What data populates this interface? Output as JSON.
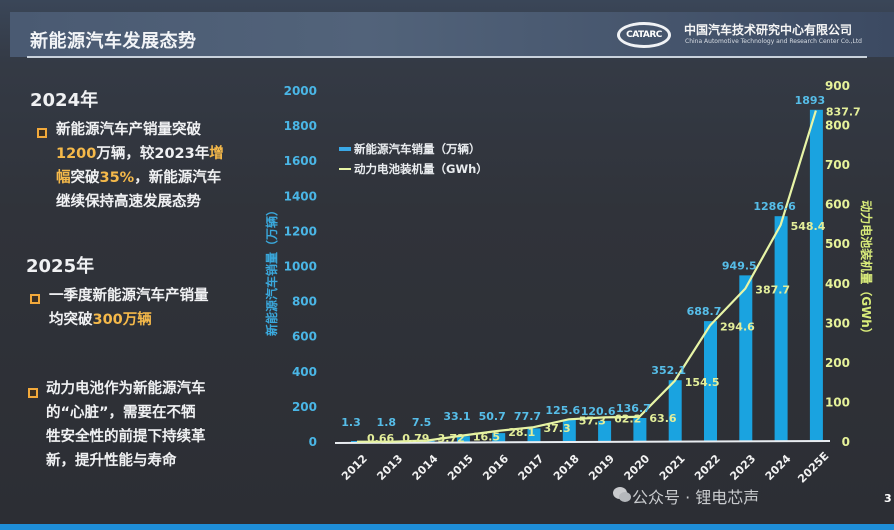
{
  "header": {
    "title": "新能源汽车发展态势",
    "logo_mark": "CATARC",
    "org_cn": "中国汽车技术研究中心有限公司",
    "org_en": "China Automotive Technology and Research Center Co.,Ltd"
  },
  "left_panel": {
    "section_2024": {
      "year": "2024年",
      "lines": [
        [
          "新能源汽车产销量突破"
        ],
        [
          "1200",
          "万辆，较2023年",
          "增"
        ],
        [
          "幅",
          "突破",
          "35%",
          "，新能源汽车"
        ],
        [
          "继续保持高速发展态势"
        ]
      ]
    },
    "section_2025": {
      "year": "2025年",
      "lines": [
        [
          "一季度新能源汽车产销量"
        ],
        [
          "均突破",
          "300万辆"
        ]
      ]
    },
    "battery_note": {
      "lines": [
        "动力电池作为新能源汽车",
        "的“心脏”，需要在不牺",
        "牲安全性的前提下持续革",
        "新，提升性能与寿命"
      ]
    }
  },
  "chart_data": {
    "type": "bar+line",
    "title": "",
    "categories": [
      "2012",
      "2013",
      "2014",
      "2015",
      "2016",
      "2017",
      "2018",
      "2019",
      "2020",
      "2021",
      "2022",
      "2023",
      "2024",
      "2025E"
    ],
    "series": [
      {
        "name": "新能源汽车销量（万辆）",
        "type": "bar",
        "axis": "left",
        "color": "#1aa3e0",
        "values": [
          1.3,
          1.8,
          7.5,
          33.1,
          50.7,
          77.7,
          125.6,
          120.6,
          136.7,
          352.1,
          688.7,
          949.5,
          1286.6,
          1893
        ],
        "labels": [
          "1.3",
          "1.8",
          "7.5",
          "33.1",
          "50.7",
          "77.7",
          "125.6",
          "120.6",
          "136.7",
          "352.1",
          "688.7",
          "949.5",
          "1286.6",
          "1893"
        ]
      },
      {
        "name": "动力电池装机量（GWh）",
        "type": "line",
        "axis": "right",
        "color": "#e8f5a6",
        "values": [
          0.66,
          0.79,
          3.72,
          16.5,
          28.1,
          37.3,
          57.3,
          62.2,
          63.6,
          154.5,
          294.6,
          387.7,
          548.4,
          837.7
        ],
        "labels": [
          "0.66",
          "0.79",
          "3.72",
          "16.5",
          "28.1",
          "37.3",
          "57.3",
          "62.2",
          "63.6",
          "154.5",
          "294.6",
          "387.7",
          "548.4",
          "837.7"
        ]
      }
    ],
    "y_left": {
      "label": "新能源汽车销量（万辆）",
      "ylim": [
        0,
        2000
      ],
      "ticks": [
        "0",
        "200",
        "400",
        "600",
        "800",
        "1000",
        "1200",
        "1400",
        "1600",
        "1800",
        "2000"
      ]
    },
    "y_right": {
      "label": "动力电池装机量（GWh）",
      "ylim": [
        0,
        900
      ],
      "ticks": [
        "0",
        "100",
        "200",
        "300",
        "400",
        "500",
        "600",
        "700",
        "800",
        "900"
      ]
    },
    "legend": {
      "position": "upper-left-inside",
      "items": [
        "新能源汽车销量（万辆）",
        "动力电池装机量（GWh）"
      ]
    },
    "grid": false
  },
  "footer": {
    "watermark": "公众号 · 锂电芯声",
    "page_number": "3"
  }
}
